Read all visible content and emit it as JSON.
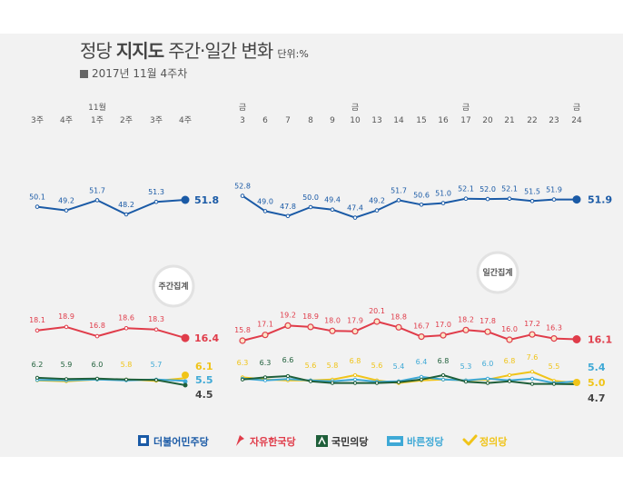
{
  "header": {
    "title_part1": "정당",
    "title_bold": "지지도",
    "title_part2": "주간·일간 변화",
    "unit": "단위:%",
    "subtitle": "2017년 11월 4주차"
  },
  "badges": {
    "weekly": "주간집계",
    "daily": "일간집계"
  },
  "colors": {
    "minjoo": "#1a5aa6",
    "jayu": "#e03c4a",
    "gukmin": "#1f5f3a",
    "bareun": "#3fa9d6",
    "jeongui": "#f0c419"
  },
  "chart_data": [
    {
      "type": "line",
      "name": "weekly",
      "categories": [
        "3주",
        "4주",
        "11월 1주",
        "2주",
        "3주",
        "4주"
      ],
      "series": [
        {
          "name": "더불어민주당",
          "values": [
            50.1,
            49.2,
            51.7,
            48.2,
            51.3,
            51.8
          ]
        },
        {
          "name": "자유한국당",
          "values": [
            18.1,
            18.9,
            16.8,
            18.6,
            18.3,
            16.4
          ]
        },
        {
          "name": "국민의당",
          "values": [
            6.2,
            5.9,
            6.0,
            5.8,
            5.7,
            4.5
          ]
        },
        {
          "name": "바른정당",
          "values": [
            5.7,
            5.6,
            5.8,
            5.6,
            5.8,
            5.5
          ]
        },
        {
          "name": "정의당",
          "values": [
            5.6,
            5.4,
            5.8,
            5.8,
            5.5,
            6.1
          ]
        }
      ],
      "labels": {
        "더불어민주당": [
          "50.1",
          "49.2",
          "51.7",
          "48.2",
          "51.3",
          "51.8"
        ],
        "자유한국당": [
          "18.1",
          "18.9",
          "16.8",
          "18.6",
          "18.3",
          "16.4"
        ],
        "mixed": [
          "6.2",
          "5.9",
          "6.0",
          "5.8",
          "5.7"
        ],
        "final_jeongui": "6.1",
        "final_bareun": "5.5",
        "final_gukmin": "4.5"
      }
    },
    {
      "type": "line",
      "name": "daily",
      "categories": [
        "금 3",
        "6",
        "7",
        "8",
        "9",
        "금 10",
        "13",
        "14",
        "15",
        "16",
        "금 17",
        "20",
        "21",
        "22",
        "23",
        "금 24"
      ],
      "series": [
        {
          "name": "더불어민주당",
          "values": [
            52.8,
            49.0,
            47.8,
            50.0,
            49.4,
            47.4,
            49.2,
            51.7,
            50.6,
            51.0,
            52.1,
            52.0,
            52.1,
            51.5,
            51.9,
            51.9
          ]
        },
        {
          "name": "자유한국당",
          "values": [
            15.8,
            17.1,
            19.2,
            18.9,
            18.0,
            17.9,
            20.1,
            18.8,
            16.7,
            17.0,
            18.2,
            17.8,
            16.0,
            17.2,
            16.3,
            16.1
          ]
        },
        {
          "name": "국민의당",
          "values": [
            5.8,
            6.3,
            6.6,
            5.4,
            5.0,
            5.0,
            5.0,
            5.2,
            5.8,
            6.8,
            5.3,
            5.0,
            5.4,
            4.8,
            4.8,
            4.7
          ]
        },
        {
          "name": "바른정당",
          "values": [
            6.0,
            5.6,
            5.9,
            5.6,
            5.4,
            5.8,
            5.3,
            5.4,
            6.4,
            5.8,
            5.6,
            6.0,
            5.6,
            6.0,
            5.0,
            5.4
          ]
        },
        {
          "name": "정의당",
          "values": [
            6.3,
            5.8,
            5.6,
            5.6,
            5.8,
            6.8,
            5.6,
            5.0,
            5.6,
            5.8,
            5.6,
            5.8,
            6.8,
            7.6,
            5.5,
            5.0
          ]
        }
      ],
      "labels": {
        "더불어민주당": [
          "52.8",
          "49.0",
          "47.8",
          "50.0",
          "49.4",
          "47.4",
          "49.2",
          "51.7",
          "50.6",
          "51.0",
          "52.1",
          "52.0",
          "52.1",
          "51.5",
          "51.9",
          "51.9"
        ],
        "자유한국당": [
          "15.8",
          "17.1",
          "19.2",
          "18.9",
          "18.0",
          "17.9",
          "20.1",
          "18.8",
          "16.7",
          "17.0",
          "18.2",
          "17.8",
          "16.0",
          "17.2",
          "16.3",
          "16.1"
        ],
        "mixed": [
          "6.3",
          "6.3",
          "6.6",
          "5.6",
          "5.8",
          "6.8",
          "5.6",
          "5.4",
          "6.4",
          "6.8",
          "5.3",
          "6.0",
          "6.8",
          "7.6",
          "5.5"
        ],
        "final_bareun": "5.4",
        "final_jeongui": "5.0",
        "final_gukmin": "4.7"
      }
    }
  ],
  "legend": [
    {
      "label": "더불어민주당",
      "icon": "minjoo-logo-icon"
    },
    {
      "label": "자유한국당",
      "icon": "torch-logo-icon"
    },
    {
      "label": "국민의당",
      "icon": "gukmin-logo-icon"
    },
    {
      "label": "바른정당",
      "icon": "bareun-logo-icon"
    },
    {
      "label": "정의당",
      "icon": "check-logo-icon"
    }
  ]
}
